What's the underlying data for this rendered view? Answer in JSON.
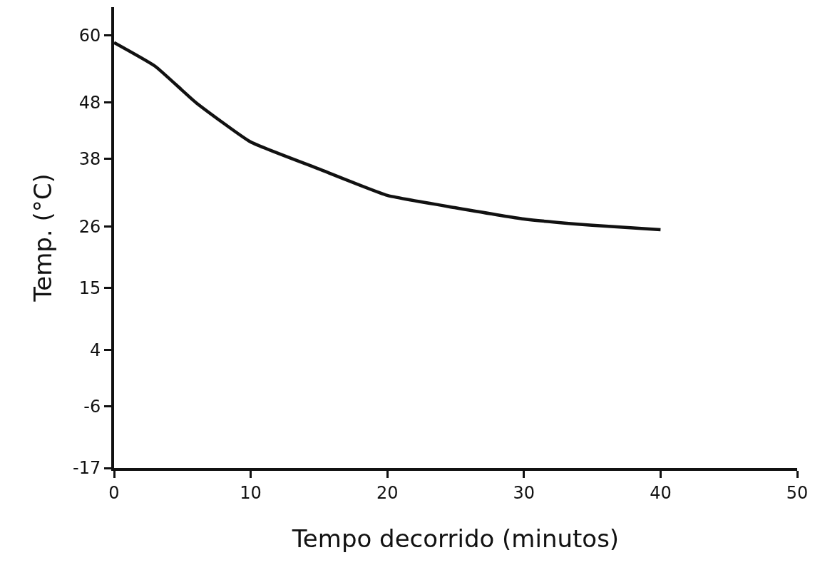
{
  "chart_data": {
    "type": "line",
    "xlabel": "Tempo decorrido (minutos)",
    "ylabel": "Temp. (°C)",
    "x": [
      0,
      3,
      6,
      10,
      15,
      20,
      25,
      30,
      35,
      40
    ],
    "series": [
      {
        "color": "#111111",
        "values": [
          58.7,
          54.5,
          48.0,
          41.0,
          36.2,
          31.5,
          29.3,
          27.3,
          26.2,
          25.4
        ]
      }
    ],
    "xlim": [
      0,
      50
    ],
    "xticks": [
      0,
      10,
      20,
      30,
      40,
      50
    ],
    "ylim": [
      -17,
      65
    ],
    "yticks": [
      -17,
      -6,
      4,
      15,
      26,
      38,
      48,
      60
    ],
    "grid": false,
    "marker": "none",
    "line_style": "solid"
  }
}
